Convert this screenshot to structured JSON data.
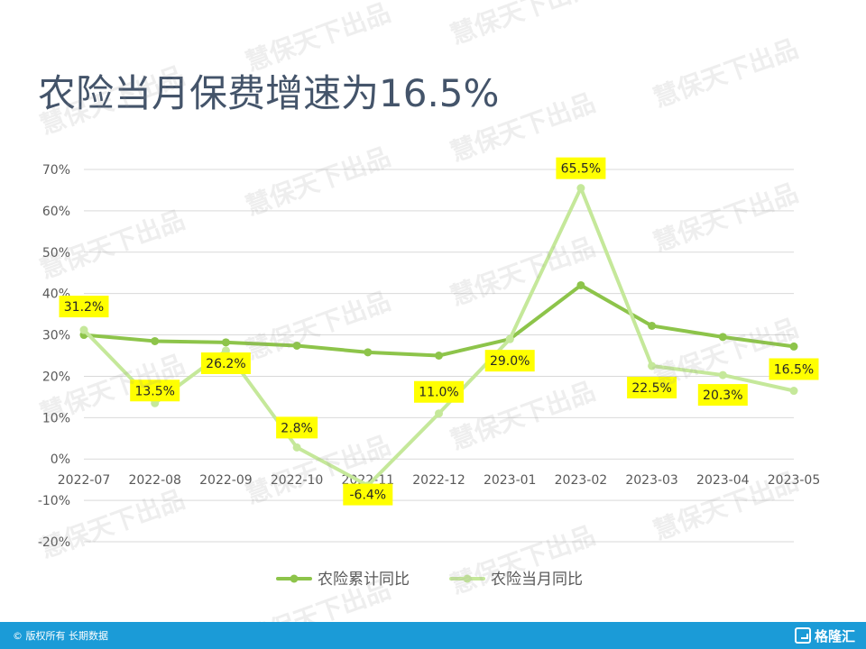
{
  "title": "农险当月保费增速为16.5%",
  "watermark": "慧保天下出品",
  "footer": {
    "copyright": "© 版权所有 长期数据",
    "logo_text": "格隆汇"
  },
  "colors": {
    "cumulative_series": "#8dc44a",
    "monthly_series": "#c5e89a",
    "label_bg": "#ffff00",
    "footer_bg": "#1b9bd7",
    "title": "#44546a"
  },
  "chart_data": {
    "type": "line",
    "categories": [
      "2022-07",
      "2022-08",
      "2022-09",
      "2022-10",
      "2022-11",
      "2022-12",
      "2023-01",
      "2023-02",
      "2023-03",
      "2023-04",
      "2023-05"
    ],
    "y_ticks": [
      "70%",
      "60%",
      "50%",
      "40%",
      "30%",
      "20%",
      "10%",
      "0%",
      "-10%",
      "-20%"
    ],
    "ylim": [
      -20,
      70
    ],
    "grid": true,
    "legend_position": "bottom",
    "series": [
      {
        "name": "农险累计同比",
        "values": [
          30.0,
          28.5,
          28.2,
          27.4,
          25.8,
          25.0,
          29.0,
          42.0,
          32.2,
          29.5,
          27.2
        ]
      },
      {
        "name": "农险当月同比",
        "values": [
          31.2,
          13.5,
          26.2,
          2.8,
          -6.4,
          11.0,
          29.0,
          65.5,
          22.5,
          20.3,
          16.5
        ],
        "data_labels": [
          "31.2%",
          "13.5%",
          "26.2%",
          "2.8%",
          "-6.4%",
          "11.0%",
          "29.0%",
          "65.5%",
          "22.5%",
          "20.3%",
          "16.5%"
        ]
      }
    ]
  }
}
